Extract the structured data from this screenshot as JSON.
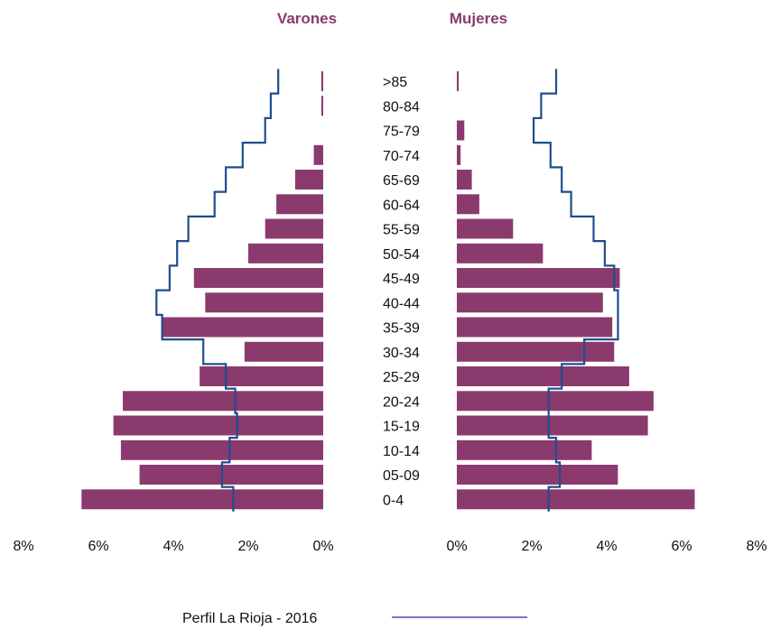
{
  "chart_data": {
    "type": "bar",
    "orientation": "horizontal",
    "subtype": "population-pyramid",
    "categories": [
      ">85",
      "80-84",
      "75-79",
      "70-74",
      "65-69",
      "60-64",
      "55-59",
      "50-54",
      "45-49",
      "40-44",
      "35-39",
      "30-34",
      "25-29",
      "20-24",
      "15-19",
      "10-14",
      "05-09",
      "0-4"
    ],
    "left_title": "Varones",
    "right_title": "Mujeres",
    "left_ticks": [
      "8%",
      "6%",
      "4%",
      "2%",
      "0%"
    ],
    "right_ticks": [
      "0%",
      "2%",
      "4%",
      "6%",
      "8%"
    ],
    "xlim": [
      0,
      8
    ],
    "series": [
      {
        "side": "left",
        "type": "bar",
        "color": "#8b3a6e",
        "values": [
          0.05,
          0.05,
          0.0,
          0.25,
          0.75,
          1.25,
          1.55,
          2.0,
          3.45,
          3.15,
          4.3,
          2.1,
          3.3,
          5.35,
          5.6,
          5.4,
          4.9,
          6.45
        ]
      },
      {
        "side": "right",
        "type": "bar",
        "color": "#8b3a6e",
        "values": [
          0.05,
          0.0,
          0.2,
          0.1,
          0.4,
          0.6,
          1.5,
          2.3,
          4.35,
          3.9,
          4.15,
          4.2,
          4.6,
          5.25,
          5.1,
          3.6,
          4.3,
          6.35
        ]
      },
      {
        "side": "left",
        "type": "step-line",
        "name": "Perfil La Rioja - 2016",
        "color": "#1f4e8c",
        "values": [
          1.2,
          1.4,
          1.55,
          2.15,
          2.6,
          2.9,
          3.6,
          3.9,
          4.1,
          4.45,
          4.3,
          3.2,
          2.6,
          2.35,
          2.3,
          2.5,
          2.7,
          2.4
        ]
      },
      {
        "side": "right",
        "type": "step-line",
        "name": "Perfil La Rioja - 2016",
        "color": "#1f4e8c",
        "values": [
          2.65,
          2.25,
          2.05,
          2.5,
          2.8,
          3.05,
          3.65,
          3.95,
          4.2,
          4.3,
          4.3,
          3.4,
          2.8,
          2.45,
          2.45,
          2.65,
          2.75,
          2.45
        ]
      }
    ],
    "legend": {
      "label": "Perfil La Rioja - 2016",
      "color": "#7b77c9",
      "placement": "bottom-center"
    }
  }
}
